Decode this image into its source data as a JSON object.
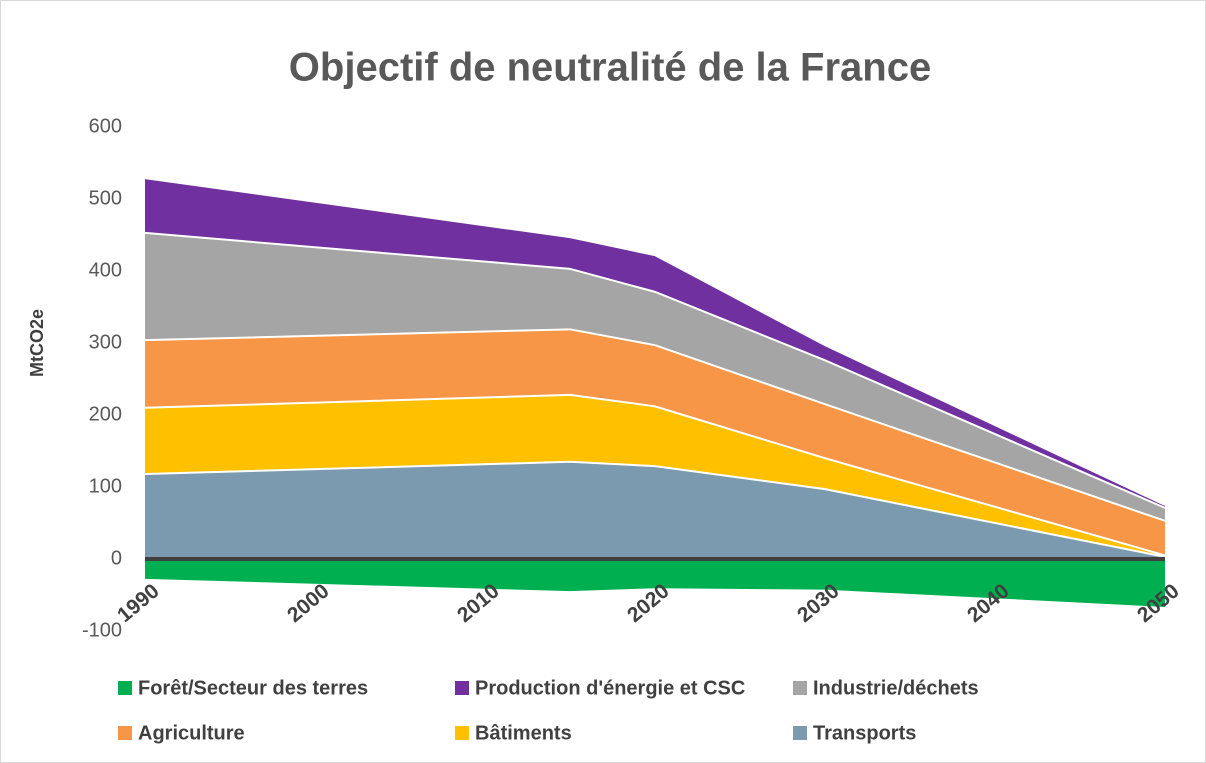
{
  "chart_data": {
    "type": "stacked_area",
    "title": "Objectif de neutralité de la France",
    "y_label": "MtCO2e",
    "x": [
      1990,
      2015,
      2020,
      2030,
      2050
    ],
    "xlim": [
      1990,
      2050
    ],
    "xticks": [
      1990,
      2000,
      2010,
      2020,
      2030,
      2040,
      2050
    ],
    "ylim": [
      -100,
      600
    ],
    "yticks": [
      -100,
      0,
      100,
      200,
      300,
      400,
      500,
      600
    ],
    "legend": "bottom",
    "series": [
      {
        "name": "Forêt/Secteur des terres",
        "color": "#00b050",
        "values": [
          -29,
          -46,
          -42,
          -44,
          -68
        ]
      },
      {
        "name": "Production d'énergie et CSC",
        "color": "#7030a0",
        "values": [
          76,
          44,
          51,
          21,
          4
        ]
      },
      {
        "name": "Industrie/déchets",
        "color": "#a5a5a5",
        "values": [
          149,
          84,
          74,
          61,
          18
        ]
      },
      {
        "name": "Agriculture",
        "color": "#f79646",
        "values": [
          94,
          91,
          85,
          75,
          48
        ]
      },
      {
        "name": "Bâtiments",
        "color": "#ffc000",
        "values": [
          92,
          93,
          83,
          43,
          2
        ]
      },
      {
        "name": "Transports",
        "color": "#7b9ab0",
        "values": [
          118,
          135,
          129,
          97,
          3
        ]
      }
    ]
  }
}
